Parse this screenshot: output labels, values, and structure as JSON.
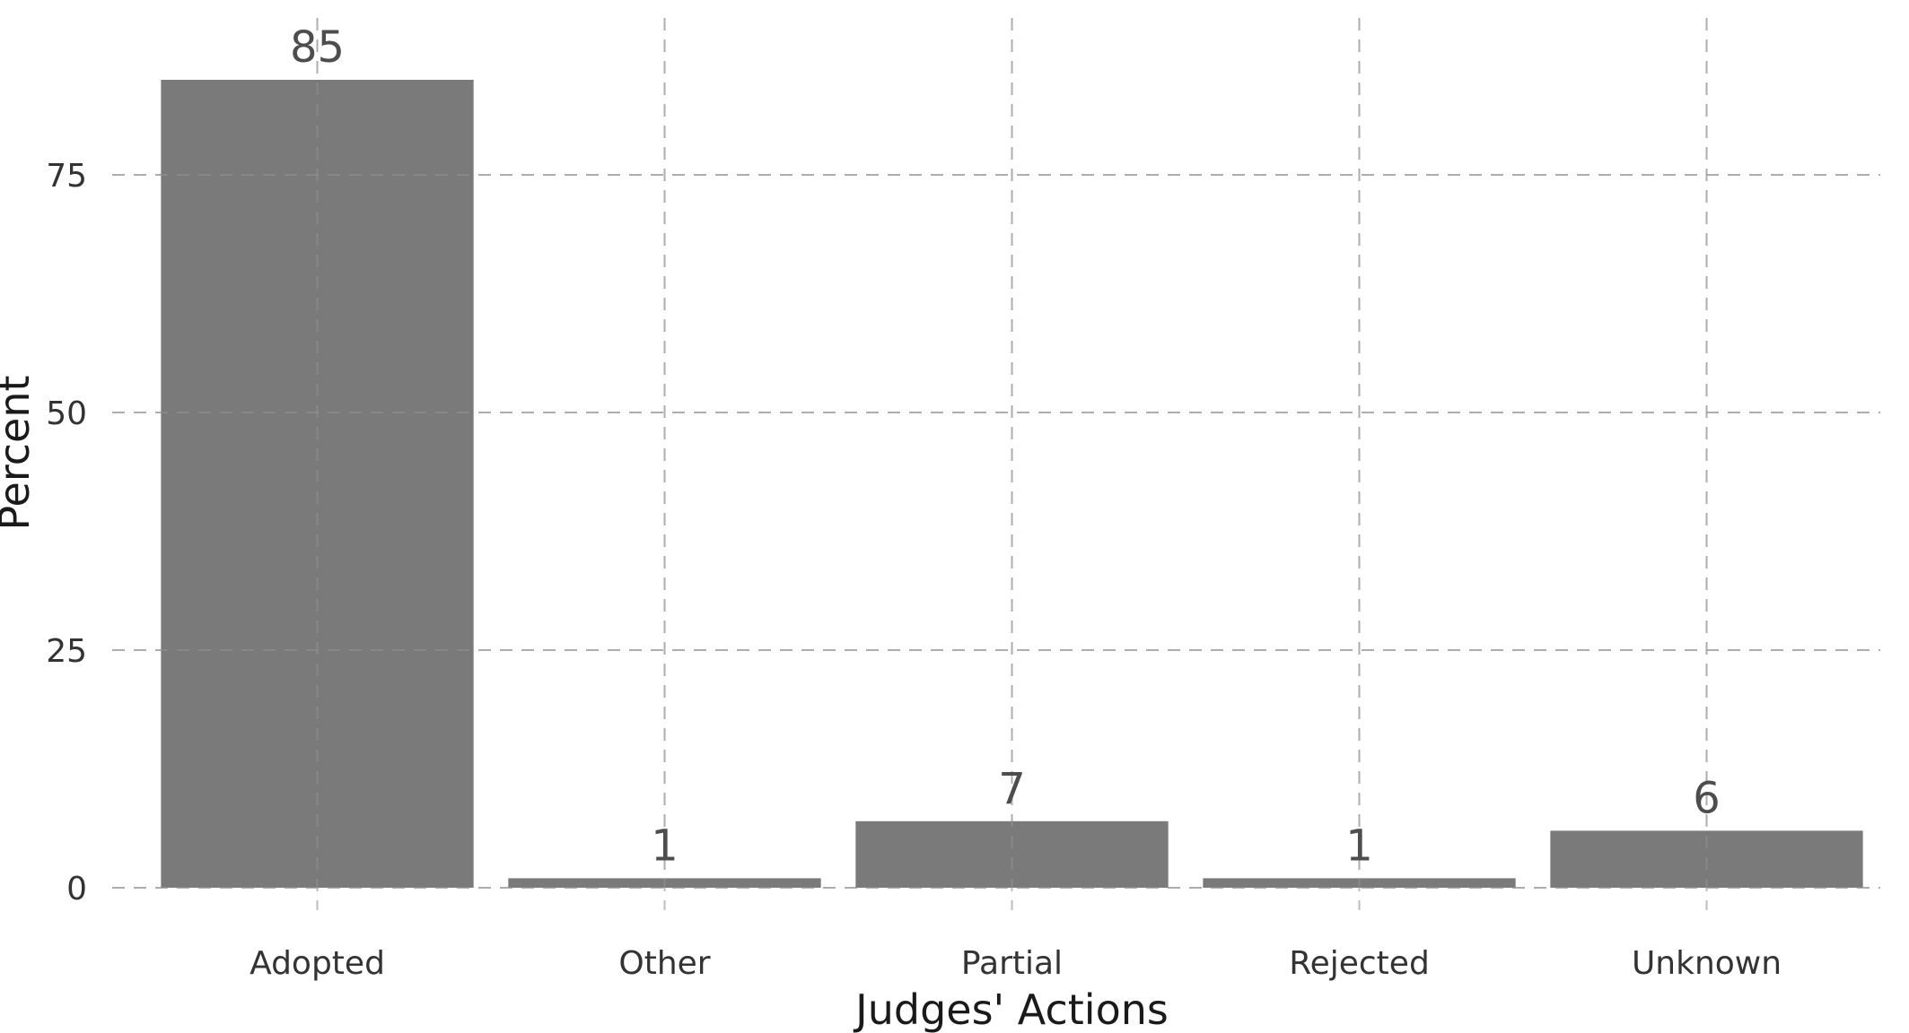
{
  "chart_data": {
    "type": "bar",
    "categories": [
      "Adopted",
      "Other",
      "Partial",
      "Rejected",
      "Unknown"
    ],
    "values": [
      85,
      1,
      7,
      1,
      6
    ],
    "data_labels": [
      "85",
      "1",
      "7",
      "1",
      "6"
    ],
    "title": "",
    "xlabel": "Judges' Actions",
    "ylabel": "Percent",
    "ylim": [
      0,
      90
    ],
    "yticks": [
      0,
      25,
      50,
      75
    ],
    "grid": true,
    "legend": "none",
    "bar_color": "#7a7a7a",
    "grid_color": "#bdbdbd"
  }
}
